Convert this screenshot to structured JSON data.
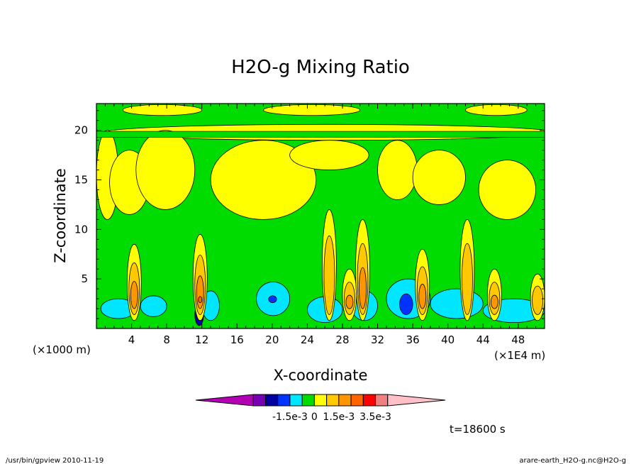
{
  "chart_data": {
    "type": "heatmap",
    "title": "H2O-g Mixing Ratio",
    "xlabel": "X-coordinate",
    "ylabel": "Z-coordinate",
    "x_scale_note": "(×1E4 m)",
    "y_scale_note": "(×1000 m)",
    "x_ticks": [
      "4",
      "8",
      "12",
      "16",
      "20",
      "24",
      "28",
      "32",
      "36",
      "40",
      "44",
      "48"
    ],
    "x_tick_values": [
      4,
      8,
      12,
      16,
      20,
      24,
      28,
      32,
      36,
      40,
      44,
      48
    ],
    "y_ticks": [
      "5",
      "10",
      "15",
      "20"
    ],
    "y_tick_values": [
      5,
      10,
      15,
      20
    ],
    "xlim": [
      0,
      51
    ],
    "ylim": [
      0,
      22.7
    ],
    "colorbar": {
      "colors": [
        "#b400b4",
        "#7800b4",
        "#0000a0",
        "#0032ff",
        "#00e6ff",
        "#00dc00",
        "#ffff00",
        "#ffc800",
        "#ff9600",
        "#ff6400",
        "#ff0000",
        "#f08080",
        "#ffc0c8"
      ],
      "labels": [
        "-1.5e-3",
        "0",
        "1.5e-3",
        "3.5e-3"
      ],
      "label_positions": [
        3,
        5,
        7,
        10
      ]
    },
    "background_color": "#00dc00",
    "time_label": "t=18600 s",
    "footer_left": "/usr/bin/gpview  2010-11-19",
    "footer_right": "arare-earth_H2O-g.nc@H2O-g",
    "regions": {
      "upper_layer": [
        {
          "x": [
            1,
            52
          ],
          "y": [
            19.0,
            20.6
          ],
          "level": 6
        },
        {
          "x": [
            0,
            2.5
          ],
          "y": [
            11,
            20
          ],
          "level": 6
        },
        {
          "x": [
            1.5,
            6
          ],
          "y": [
            11.5,
            18
          ],
          "level": 6
        },
        {
          "x": [
            4.5,
            11.2
          ],
          "y": [
            12,
            20
          ],
          "level": 6
        },
        {
          "x": [
            13,
            25
          ],
          "y": [
            11,
            19
          ],
          "level": 6
        },
        {
          "x": [
            22,
            31
          ],
          "y": [
            16,
            19
          ],
          "level": 6
        },
        {
          "x": [
            32,
            36.5
          ],
          "y": [
            13,
            19
          ],
          "level": 6
        },
        {
          "x": [
            36,
            42
          ],
          "y": [
            12.5,
            18
          ],
          "level": 6
        },
        {
          "x": [
            43.5,
            50
          ],
          "y": [
            11,
            17
          ],
          "level": 6
        },
        {
          "x": [
            3,
            12
          ],
          "y": [
            21.5,
            22.6
          ],
          "level": 6
        },
        {
          "x": [
            19,
            30
          ],
          "y": [
            21.5,
            22.6
          ],
          "level": 6
        },
        {
          "x": [
            42,
            49
          ],
          "y": [
            21.5,
            22.6
          ],
          "level": 6
        }
      ],
      "convective_columns": [
        {
          "x": 4.3,
          "top": 8.5,
          "level": 8
        },
        {
          "x": 11.8,
          "top": 9.5,
          "level": 9
        },
        {
          "x": 26.5,
          "top": 12,
          "level": 7
        },
        {
          "x": 28.8,
          "top": 6,
          "level": 9
        },
        {
          "x": 30.3,
          "top": 11,
          "level": 8
        },
        {
          "x": 37.1,
          "top": 8,
          "level": 8
        },
        {
          "x": 42.2,
          "top": 11,
          "level": 7
        },
        {
          "x": 45.3,
          "top": 6,
          "level": 8
        },
        {
          "x": 50.2,
          "top": 5.5,
          "level": 7
        }
      ],
      "dry_low_layer": [
        {
          "x": [
            0.5,
            4.5
          ],
          "y": [
            1,
            3
          ],
          "level": 4
        },
        {
          "x": [
            5,
            8
          ],
          "y": [
            1.2,
            3.3
          ],
          "level": 4
        },
        {
          "x": [
            12,
            14
          ],
          "y": [
            0.8,
            3.8
          ],
          "level": 4
        },
        {
          "x": [
            18.2,
            22
          ],
          "y": [
            1.3,
            4.7
          ],
          "level": 4
        },
        {
          "x": [
            24,
            28
          ],
          "y": [
            0.6,
            3.2
          ],
          "level": 4
        },
        {
          "x": [
            29,
            32
          ],
          "y": [
            0.8,
            3.8
          ],
          "level": 4
        },
        {
          "x": [
            33,
            38
          ],
          "y": [
            1,
            5
          ],
          "level": 4
        },
        {
          "x": [
            38,
            44
          ],
          "y": [
            1,
            4
          ],
          "level": 4
        },
        {
          "x": [
            44,
            51
          ],
          "y": [
            0.6,
            3
          ],
          "level": 4
        },
        {
          "x": [
            19.6,
            20.5
          ],
          "y": [
            2.6,
            3.3
          ],
          "level": 3
        },
        {
          "x": [
            34.5,
            36
          ],
          "y": [
            1.4,
            3.5
          ],
          "level": 3
        },
        {
          "x": [
            11.2,
            12.2
          ],
          "y": [
            0.3,
            2.5
          ],
          "level": 2
        }
      ]
    }
  }
}
